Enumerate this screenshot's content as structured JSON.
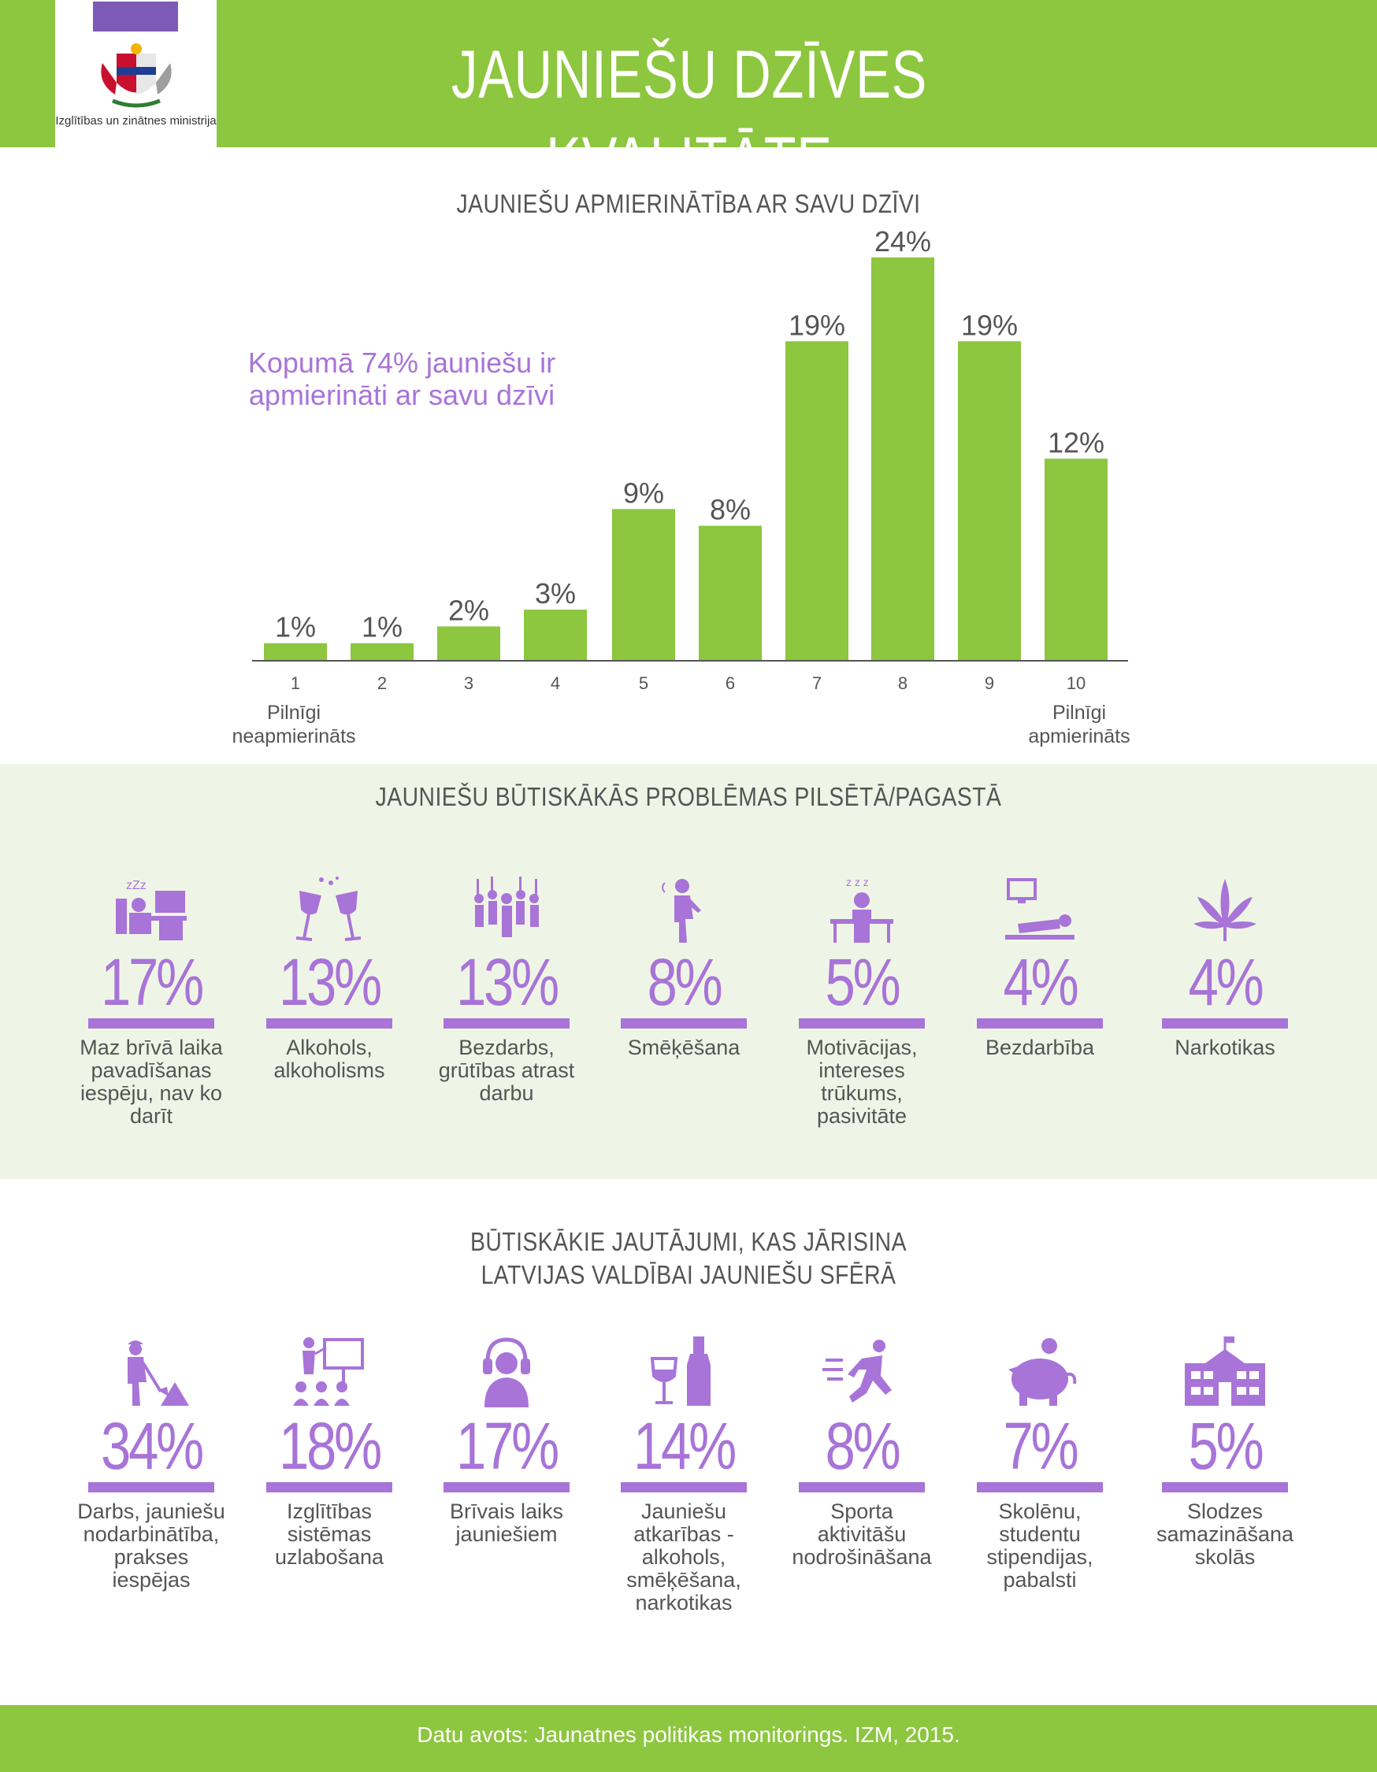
{
  "header": {
    "title": "JAUNIEŠU DZĪVES KVALITĀTE",
    "ministry_name": "Izglītības un zinātnes ministrija",
    "brand_green": "#8dc63f",
    "accent_purple": "#a874d8"
  },
  "section1": {
    "title": "JAUNIEŠU APMIERINĀTĪBA AR SAVU DZĪVI",
    "callout": "Kopumā 74% jauniešu ir apmierināti ar savu dzīvi",
    "low_label": "Pilnīgi neapmierināts",
    "high_label": "Pilnīgi apmierināts"
  },
  "chart_data": {
    "type": "bar",
    "title": "JAUNIEŠU APMIERINĀTĪBA AR SAVU DZĪVI",
    "categories": [
      "1",
      "2",
      "3",
      "4",
      "5",
      "6",
      "7",
      "8",
      "9",
      "10"
    ],
    "values": [
      1,
      1,
      2,
      3,
      9,
      8,
      19,
      24,
      19,
      12
    ],
    "value_labels": [
      "1%",
      "1%",
      "2%",
      "3%",
      "9%",
      "8%",
      "19%",
      "24%",
      "19%",
      "12%"
    ],
    "unit": "%",
    "ylim": [
      0,
      24
    ],
    "grid": false,
    "bar_color": "#8dc63f"
  },
  "section2": {
    "title": "JAUNIEŠU BŪTISKĀKĀS PROBLĒMAS PILSĒTĀ/PAGASTĀ",
    "items": [
      {
        "icon": "sleeping-at-desk-icon",
        "value": "17%",
        "label": "Maz brīvā laika pavadīšanas iespēju, nav ko darīt"
      },
      {
        "icon": "wine-glasses-icon",
        "value": "13%",
        "label": "Alkohols, alkoholisms"
      },
      {
        "icon": "crowd-icon",
        "value": "13%",
        "label": "Bezdarbs, grūtības atrast darbu"
      },
      {
        "icon": "smoking-person-icon",
        "value": "8%",
        "label": "Smēķēšana"
      },
      {
        "icon": "bored-student-icon",
        "value": "5%",
        "label": "Motivācijas, intereses trūkums, pasivitāte"
      },
      {
        "icon": "lying-person-tv-icon",
        "value": "4%",
        "label": "Bezdarbība"
      },
      {
        "icon": "cannabis-leaf-icon",
        "value": "4%",
        "label": "Narkotikas"
      }
    ]
  },
  "section3": {
    "title_line1": "BŪTISKĀKIE JAUTĀJUMI, KAS JĀRISINA",
    "title_line2": "LATVIJAS VALDĪBAI JAUNIEŠU SFĒRĀ",
    "items": [
      {
        "icon": "worker-shoveling-icon",
        "value": "34%",
        "label": "Darbs, jauniešu nodarbinātība, prakses iespējas"
      },
      {
        "icon": "presentation-board-icon",
        "value": "18%",
        "label": "Izglītības sistēmas uzlabošana"
      },
      {
        "icon": "person-headphones-icon",
        "value": "17%",
        "label": "Brīvais laiks jauniešiem"
      },
      {
        "icon": "wine-bottle-icon",
        "value": "14%",
        "label": "Jauniešu atkarības - alkohols, smēķēšana, narkotikas"
      },
      {
        "icon": "running-person-icon",
        "value": "8%",
        "label": "Sporta aktivitāšu nodrošināšana"
      },
      {
        "icon": "piggy-bank-icon",
        "value": "7%",
        "label": "Skolēnu, studentu stipendijas, pabalsti"
      },
      {
        "icon": "school-building-icon",
        "value": "5%",
        "label": "Slodzes samazināšana skolās"
      }
    ]
  },
  "footer": {
    "source": "Datu avots: Jaunatnes politikas monitorings. IZM, 2015."
  }
}
